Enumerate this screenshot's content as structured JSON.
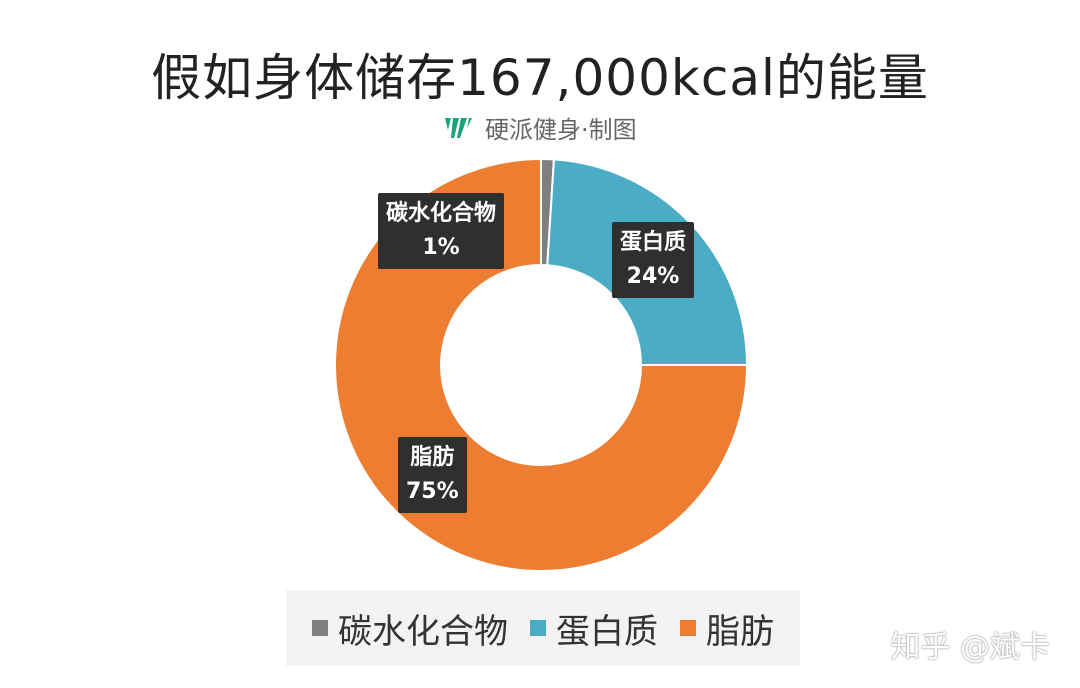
{
  "header": {
    "title": "假如身体储存167,000kcal的能量",
    "brand_name": "硬派健身",
    "brand_suffix": "·制图",
    "brand_color": "#1aa37a"
  },
  "chart_data": {
    "type": "pie",
    "donut": true,
    "title": "假如身体储存167,000kcal的能量",
    "legend_position": "bottom",
    "slices": [
      {
        "name": "碳水化合物",
        "value": 1,
        "value_label": "1%",
        "color": "#7f7f7f"
      },
      {
        "name": "蛋白质",
        "value": 24,
        "value_label": "24%",
        "color": "#4bacc6"
      },
      {
        "name": "脂肪",
        "value": 75,
        "value_label": "75%",
        "color": "#ed7d31"
      }
    ]
  },
  "footer": {
    "watermark": "知乎 @斌卡"
  }
}
